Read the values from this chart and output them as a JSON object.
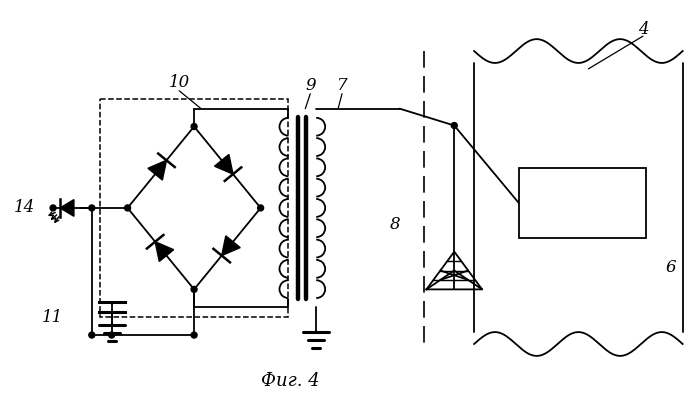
{
  "background": "#ffffff",
  "line_color": "#000000",
  "fig_caption": "Фиг. 4",
  "lw": 1.3,
  "lw_thick": 2.2
}
